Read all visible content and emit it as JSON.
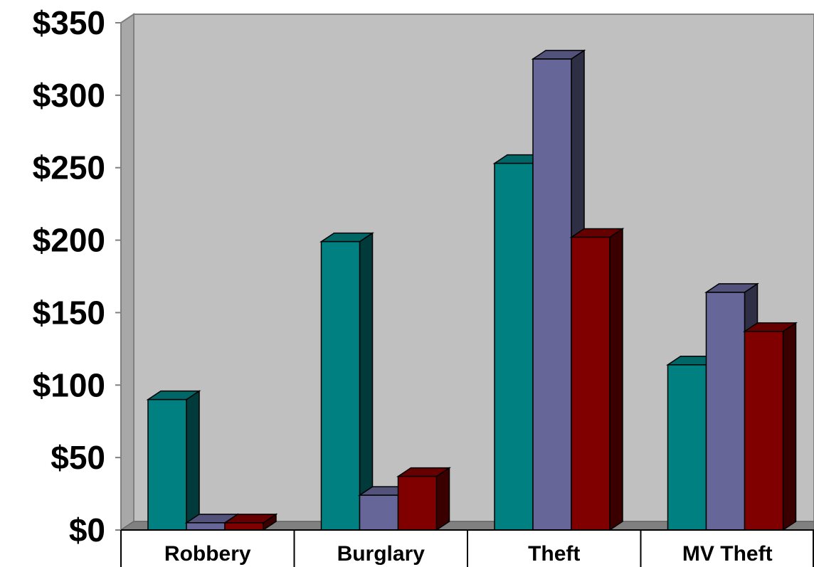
{
  "chart_data": {
    "type": "bar",
    "title": "",
    "xlabel": "",
    "ylabel": "",
    "ylim": [
      0,
      350
    ],
    "yticks": [
      0,
      50,
      100,
      150,
      200,
      250,
      300,
      350
    ],
    "ytick_labels": [
      "$0",
      "$50",
      "$100",
      "$150",
      "$200",
      "$250",
      "$300",
      "$350"
    ],
    "categories": [
      "Robbery",
      "Burglary",
      "Theft",
      "MV Theft"
    ],
    "series": [
      {
        "values": [
          90,
          199,
          253,
          114
        ],
        "color": "#008080"
      },
      {
        "values": [
          5,
          24,
          325,
          164
        ],
        "color": "#666699"
      },
      {
        "values": [
          5,
          37,
          202,
          137
        ],
        "color": "#800000"
      }
    ],
    "grid": false,
    "legend": "none",
    "three_d": true,
    "colors": {
      "wall": "#c0c0c0",
      "floor": "#808080",
      "axis": "#808080"
    }
  }
}
